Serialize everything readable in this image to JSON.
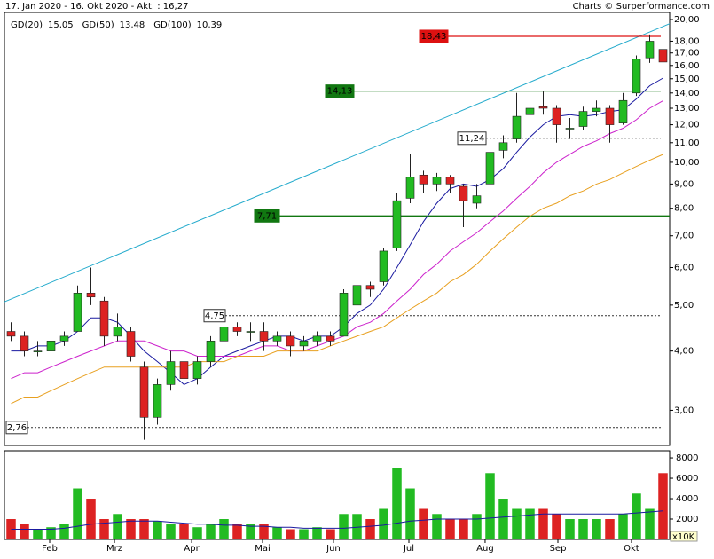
{
  "chart_data": {
    "type": "candlestick",
    "title": "17. Jan 2020 - 16. Okt 2020 - Akt. : 16,27",
    "credit": "Charts © Surperformance.com",
    "categories": [
      null,
      null,
      null,
      null,
      null,
      null,
      null,
      null,
      null,
      null,
      null,
      null,
      null,
      null,
      null,
      null,
      null,
      null,
      null,
      null,
      null,
      null,
      null,
      null,
      null,
      null,
      null,
      null,
      null,
      null,
      null,
      null,
      null,
      null,
      null,
      null,
      null,
      null,
      null,
      null,
      null,
      null,
      null,
      null,
      null,
      null,
      null,
      null,
      null,
      null
    ],
    "open": [
      4.4,
      4.3,
      4.0,
      4.0,
      4.2,
      4.4,
      5.3,
      5.1,
      4.3,
      4.4,
      3.7,
      2.9,
      3.4,
      3.8,
      3.5,
      3.8,
      4.2,
      4.5,
      4.4,
      4.4,
      4.2,
      4.3,
      4.1,
      4.2,
      4.3,
      4.3,
      5.0,
      5.5,
      5.6,
      6.6,
      8.4,
      9.4,
      9.0,
      9.3,
      8.9,
      8.2,
      9.0,
      10.6,
      11.2,
      12.6,
      13.1,
      13.0,
      11.8,
      11.9,
      12.8,
      13.0,
      12.1,
      14.0,
      16.6,
      17.3
    ],
    "high": [
      4.6,
      4.4,
      4.2,
      4.3,
      4.4,
      5.5,
      6.0,
      5.2,
      4.8,
      4.5,
      3.8,
      3.5,
      4.0,
      3.9,
      3.9,
      4.3,
      4.6,
      4.6,
      4.6,
      4.6,
      4.4,
      4.4,
      4.3,
      4.4,
      4.4,
      5.4,
      5.7,
      5.6,
      6.6,
      8.6,
      10.4,
      9.6,
      9.5,
      9.4,
      9.0,
      9.0,
      10.8,
      11.4,
      14.0,
      13.4,
      14.1,
      13.2,
      12.4,
      13.1,
      13.5,
      13.2,
      14.0,
      16.8,
      18.6,
      17.4
    ],
    "low": [
      4.2,
      3.9,
      3.9,
      4.0,
      4.1,
      4.4,
      5.0,
      4.1,
      4.2,
      3.8,
      2.6,
      2.8,
      3.3,
      3.3,
      3.4,
      3.7,
      4.1,
      4.3,
      4.2,
      4.0,
      4.1,
      3.9,
      4.0,
      4.1,
      4.1,
      4.3,
      4.8,
      5.2,
      5.5,
      6.5,
      8.2,
      8.6,
      8.7,
      8.6,
      7.3,
      8.0,
      8.9,
      10.2,
      11.0,
      12.3,
      12.6,
      11.0,
      11.2,
      11.7,
      12.5,
      11.0,
      12.0,
      13.8,
      16.2,
      16.1
    ],
    "close": [
      4.3,
      4.0,
      4.0,
      4.2,
      4.3,
      5.3,
      5.2,
      4.3,
      4.5,
      3.9,
      2.9,
      3.4,
      3.8,
      3.5,
      3.8,
      4.2,
      4.5,
      4.4,
      4.4,
      4.2,
      4.3,
      4.1,
      4.2,
      4.3,
      4.2,
      5.3,
      5.5,
      5.4,
      6.5,
      8.3,
      9.3,
      9.0,
      9.3,
      9.0,
      8.3,
      8.5,
      10.5,
      11.0,
      12.5,
      13.0,
      13.0,
      12.0,
      11.8,
      12.8,
      13.0,
      12.0,
      13.5,
      16.5,
      18.0,
      16.27
    ],
    "up_color": "#22bb22",
    "down_color": "#dd2222",
    "series": [
      {
        "name": "GD(20)",
        "color": "#1a1aa0",
        "current": {
          "value": 15.05,
          "label": "15,05"
        },
        "values": [
          4.0,
          4.0,
          4.1,
          4.1,
          4.2,
          4.4,
          4.7,
          4.7,
          4.6,
          4.3,
          4.0,
          3.8,
          3.6,
          3.4,
          3.5,
          3.7,
          3.9,
          4.0,
          4.1,
          4.2,
          4.3,
          4.3,
          4.2,
          4.3,
          4.3,
          4.5,
          4.8,
          5.0,
          5.4,
          6.0,
          6.7,
          7.5,
          8.2,
          8.8,
          9.0,
          8.9,
          9.2,
          9.7,
          10.5,
          11.3,
          12.0,
          12.5,
          12.6,
          12.5,
          12.6,
          12.8,
          12.9,
          13.6,
          14.5,
          15.05
        ]
      },
      {
        "name": "GD(50)",
        "color": "#cc22cc",
        "current": {
          "value": 13.48,
          "label": "13,48"
        },
        "values": [
          3.5,
          3.6,
          3.6,
          3.7,
          3.8,
          3.9,
          4.0,
          4.1,
          4.2,
          4.2,
          4.2,
          4.1,
          4.0,
          4.0,
          3.9,
          3.9,
          3.9,
          3.9,
          4.0,
          4.1,
          4.1,
          4.0,
          4.0,
          4.1,
          4.2,
          4.3,
          4.5,
          4.6,
          4.8,
          5.1,
          5.4,
          5.8,
          6.1,
          6.5,
          6.8,
          7.1,
          7.5,
          7.9,
          8.4,
          8.9,
          9.5,
          10.0,
          10.4,
          10.8,
          11.1,
          11.5,
          11.8,
          12.3,
          13.0,
          13.48
        ]
      },
      {
        "name": "GD(100)",
        "color": "#e8a020",
        "current": {
          "value": 10.39,
          "label": "10,39"
        },
        "values": [
          3.1,
          3.2,
          3.2,
          3.3,
          3.4,
          3.5,
          3.6,
          3.7,
          3.7,
          3.7,
          3.7,
          3.7,
          3.7,
          3.7,
          3.8,
          3.8,
          3.8,
          3.9,
          3.9,
          3.9,
          4.0,
          4.0,
          4.0,
          4.0,
          4.1,
          4.2,
          4.3,
          4.4,
          4.5,
          4.7,
          4.9,
          5.1,
          5.3,
          5.6,
          5.8,
          6.1,
          6.5,
          6.9,
          7.3,
          7.7,
          8.0,
          8.2,
          8.5,
          8.7,
          9.0,
          9.2,
          9.5,
          9.8,
          10.1,
          10.39
        ]
      }
    ],
    "log_scale": true,
    "ylim": [
      2.53,
      20.7
    ],
    "yticks": [
      {
        "value": 3,
        "label": "3,00"
      },
      {
        "value": 4,
        "label": "4,00"
      },
      {
        "value": 5,
        "label": "5,00"
      },
      {
        "value": 6,
        "label": "6,00"
      },
      {
        "value": 7,
        "label": "7,00"
      },
      {
        "value": 8,
        "label": "8,00"
      },
      {
        "value": 9,
        "label": "9,00"
      },
      {
        "value": 10,
        "label": "10,00"
      },
      {
        "value": 11,
        "label": "11,00"
      },
      {
        "value": 12,
        "label": "12,00"
      },
      {
        "value": 13,
        "label": "13,00"
      },
      {
        "value": 14,
        "label": "14,00"
      },
      {
        "value": 15,
        "label": "15,00"
      },
      {
        "value": 16,
        "label": "16,00"
      },
      {
        "value": 17,
        "label": "17,00"
      },
      {
        "value": 18,
        "label": "18,00"
      },
      {
        "value": 20,
        "label": "20,00"
      }
    ],
    "xticks": [
      {
        "value": 2.9,
        "label": "Feb"
      },
      {
        "value": 7.77,
        "label": "Mrz"
      },
      {
        "value": 13.57,
        "label": "Apr"
      },
      {
        "value": 18.9,
        "label": "Mai"
      },
      {
        "value": 24.23,
        "label": "Jun"
      },
      {
        "value": 29.9,
        "label": "Jul"
      },
      {
        "value": 35.63,
        "label": "Aug"
      },
      {
        "value": 41.1,
        "label": "Sep"
      },
      {
        "value": 46.63,
        "label": "Okt"
      }
    ],
    "levels": [
      {
        "value": 18.43,
        "label": "18,43",
        "color": "#dd1111",
        "style": "box"
      },
      {
        "value": 14.13,
        "label": "14,13",
        "color": "#117711",
        "style": "box"
      },
      {
        "value": 7.71,
        "label": "7,71",
        "color": "#117711",
        "style": "box"
      },
      {
        "value": 11.24,
        "label": "11,24",
        "color": "#333333",
        "style": "dashed"
      },
      {
        "value": 4.75,
        "label": "4,75",
        "color": "#333333",
        "style": "dashed"
      },
      {
        "value": 2.76,
        "label": "2,76",
        "color": "#333333",
        "style": "dashed"
      }
    ],
    "trendline": {
      "color": "#22aacc",
      "values": [
        5.08,
        19.6
      ]
    },
    "volume": {
      "values": [
        2000,
        1500,
        1000,
        1200,
        1500,
        5000,
        4000,
        2000,
        2500,
        2000,
        2000,
        1800,
        1500,
        1500,
        1200,
        1500,
        2000,
        1500,
        1500,
        1500,
        1200,
        1000,
        1000,
        1200,
        1000,
        2500,
        2500,
        2000,
        3000,
        7000,
        5000,
        3000,
        2500,
        2000,
        2000,
        2500,
        6500,
        4000,
        3000,
        3000,
        3000,
        2500,
        2000,
        2000,
        2000,
        2000,
        2500,
        4500,
        3000,
        6500
      ],
      "average": [
        1000,
        1000,
        1000,
        1000,
        1100,
        1300,
        1500,
        1600,
        1700,
        1800,
        1800,
        1800,
        1700,
        1600,
        1500,
        1500,
        1400,
        1400,
        1300,
        1300,
        1200,
        1200,
        1100,
        1100,
        1100,
        1100,
        1200,
        1300,
        1400,
        1600,
        1800,
        1900,
        2000,
        2000,
        2000,
        2000,
        2100,
        2200,
        2300,
        2400,
        2500,
        2500,
        2500,
        2500,
        2500,
        2500,
        2500,
        2600,
        2700,
        2800
      ],
      "average_color": "#1a1aa0",
      "ylim": [
        0,
        8700
      ],
      "yticks": [
        2000,
        4000,
        6000,
        8000
      ],
      "unit": "x10K"
    }
  }
}
